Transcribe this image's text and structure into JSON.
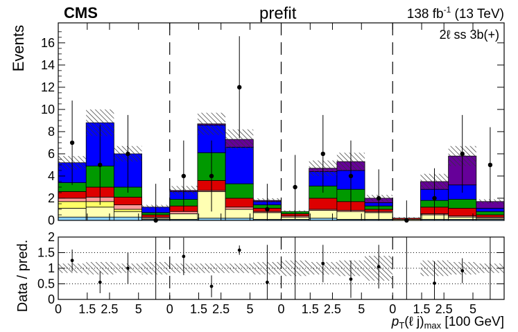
{
  "header": {
    "experiment": "CMS",
    "status": "prefit",
    "lumi_main": "138 fb",
    "lumi_exp": "-1",
    "lumi_energy": " (13 TeV)",
    "category": "2ℓ ss 3b(+)"
  },
  "chart_data": {
    "type": "bar",
    "title": "prefit",
    "stacked": true,
    "ylabel": "Events",
    "ylim": [
      0,
      17.8
    ],
    "yticks": [
      0,
      2,
      4,
      6,
      8,
      10,
      12,
      14,
      16
    ],
    "ratio_ylabel": "Data / pred.",
    "ratio_ylim": [
      0,
      2
    ],
    "ratio_yticks": [
      "0",
      "0.5",
      "1",
      "1.5",
      "2"
    ],
    "xlabel": "p",
    "xlabel_sub": "T",
    "xlabel_rest": "(ℓ j)",
    "xlabel_sub2": "max",
    "xlabel_unit": " [100 GeV]",
    "xticklabels": [
      {
        "label": "0",
        "pos": 0
      },
      {
        "label": "1.5",
        "pos": 1.3
      },
      {
        "label": "2.5",
        "pos": 2.3
      },
      {
        "label": "5",
        "pos": 3.6
      },
      {
        "label": "0",
        "pos": 5
      },
      {
        "label": "1.5",
        "pos": 6.3
      },
      {
        "label": "2.5",
        "pos": 7.3
      },
      {
        "label": "5",
        "pos": 8.6
      },
      {
        "label": "0",
        "pos": 10
      },
      {
        "label": "1.5",
        "pos": 11.3
      },
      {
        "label": "2.5",
        "pos": 12.3
      },
      {
        "label": "5",
        "pos": 13.6
      },
      {
        "label": "0",
        "pos": 15
      },
      {
        "label": "1.5",
        "pos": 16.3
      },
      {
        "label": "2.5",
        "pos": 17.3
      },
      {
        "label": "5",
        "pos": 18.6
      }
    ],
    "x_range": [
      0,
      20
    ],
    "region_boundaries": [
      5,
      10,
      15
    ],
    "colors": {
      "lightblue": "#87cefa",
      "lightyellow": "#ffffb3",
      "yellow": "#ffff66",
      "pink": "#ff9999",
      "red": "#dd0000",
      "green": "#009900",
      "blue": "#0000ff",
      "purple": "#660099",
      "uncertainty": "#444444"
    },
    "series": [
      {
        "color_key": "lightblue",
        "values": [
          0.3,
          0.3,
          0.3,
          0.1,
          0.1,
          0.2,
          0.2,
          0.1,
          0.1,
          0.2,
          0.1,
          0.1,
          0.0,
          0.1,
          0.1,
          0.1
        ]
      },
      {
        "color_key": "lightyellow",
        "values": [
          0.8,
          0.9,
          0.5,
          0.1,
          0.5,
          2.4,
          0.8,
          0.6,
          0.2,
          0.7,
          0.7,
          0.6,
          0.1,
          0.4,
          0.2,
          0.1
        ]
      },
      {
        "color_key": "yellow",
        "values": [
          0.6,
          0.5,
          0.2,
          0.0,
          0.0,
          0.0,
          0.0,
          0.0,
          0.0,
          0.0,
          0.0,
          0.0,
          0.0,
          0.0,
          0.0,
          0.0
        ]
      },
      {
        "color_key": "pink",
        "values": [
          0.3,
          0.4,
          0.4,
          0.1,
          0.2,
          0.1,
          0.2,
          0.1,
          0.1,
          0.1,
          0.1,
          0.1,
          0.0,
          0.1,
          0.1,
          0.1
        ]
      },
      {
        "color_key": "red",
        "values": [
          0.6,
          0.9,
          0.7,
          0.2,
          0.5,
          0.9,
          0.8,
          0.3,
          0.2,
          1.0,
          0.8,
          0.2,
          0.1,
          0.6,
          0.7,
          0.2
        ]
      },
      {
        "color_key": "green",
        "values": [
          0.8,
          1.9,
          0.9,
          0.2,
          0.6,
          2.5,
          1.3,
          0.3,
          0.2,
          1.1,
          1.1,
          0.3,
          0.0,
          0.6,
          0.8,
          0.3
        ]
      },
      {
        "color_key": "blue",
        "values": [
          1.8,
          3.9,
          3.0,
          0.5,
          0.7,
          2.5,
          3.3,
          0.3,
          0.0,
          1.3,
          1.7,
          0.3,
          0.0,
          1.0,
          1.3,
          0.3
        ]
      },
      {
        "color_key": "purple",
        "values": [
          0.0,
          0.0,
          0.0,
          0.0,
          0.1,
          0.1,
          0.7,
          0.1,
          0.0,
          0.3,
          0.8,
          0.4,
          0.0,
          0.7,
          2.6,
          0.6
        ]
      }
    ],
    "uncertainty": [
      0.6,
      1.2,
      0.7,
      0.2,
      0.4,
      1.0,
      0.9,
      0.2,
      0.1,
      0.7,
      0.8,
      0.3,
      0.1,
      0.7,
      0.9,
      0.2
    ],
    "data": [
      {
        "y": 7.0,
        "err": 3.8
      },
      {
        "y": 5.0,
        "err": 3.6
      },
      {
        "y": 6.0,
        "err": 3.5
      },
      {
        "y": 0.0,
        "err": 3.3
      },
      {
        "y": 4.0,
        "err": 3.2
      },
      {
        "y": 4.0,
        "err": 3.2
      },
      {
        "y": 12.0,
        "err": 4.6
      },
      {
        "y": 1.0,
        "err": 2.3
      },
      {
        "y": 3.0,
        "err": 2.9
      },
      {
        "y": 6.0,
        "err": 3.5
      },
      {
        "y": 4.0,
        "err": 3.2
      },
      {
        "y": 2.0,
        "err": 2.6
      },
      {
        "y": 0.0,
        "err": 1.8
      },
      {
        "y": 2.0,
        "err": 2.7
      },
      {
        "y": 6.0,
        "err": 3.5
      },
      {
        "y": 5.0,
        "err": 3.4
      }
    ],
    "ratio": [
      {
        "y": 1.25,
        "err": 0.35
      },
      {
        "y": 0.55,
        "err": 0.35
      },
      {
        "y": 1.0,
        "err": 0.5
      },
      {
        "y": 0.0,
        "err": 2.0
      },
      {
        "y": 1.38,
        "err": 0.6
      },
      {
        "y": 0.42,
        "err": 0.35
      },
      {
        "y": 1.58,
        "err": 0.15
      },
      {
        "y": 0.55,
        "err": 1.2
      },
      {
        "y": 0.0,
        "err": 2.0
      },
      {
        "y": 1.15,
        "err": 0.6
      },
      {
        "y": 0.65,
        "err": 0.6
      },
      {
        "y": 1.05,
        "err": 0.7
      },
      {
        "y": 0.0,
        "err": 2.0
      },
      {
        "y": 0.52,
        "err": 0.7
      },
      {
        "y": 0.92,
        "err": 0.4
      },
      {
        "y": 0.0,
        "err": 2.0
      }
    ],
    "ratio_unc": [
      0.15,
      0.2,
      0.15,
      0.2,
      0.15,
      0.15,
      0.15,
      0.2,
      0.25,
      0.2,
      0.25,
      0.4,
      0.0,
      0.25,
      0.2,
      0.15
    ]
  }
}
